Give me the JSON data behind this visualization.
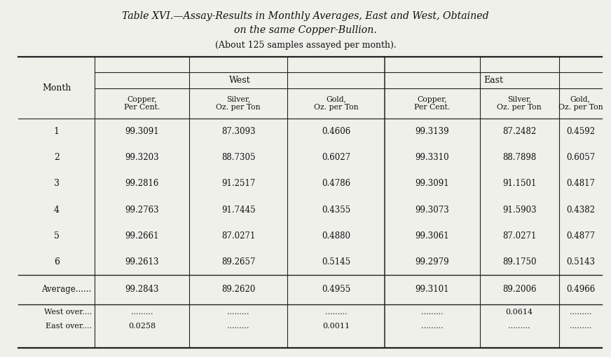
{
  "title_line1": "Table XVI.—Assay-Results in Monthly Averages, East and West, Obtained",
  "title_line2": "on the same Copper-Bullion.",
  "subtitle": "(About 125 samples assayed per month).",
  "col_group_west": "West",
  "col_group_east": "East",
  "col_headers_west": [
    "Copper,\nPer Cent.",
    "Silver,\nOz. per Ton",
    "Gold,\nOz. per Ton"
  ],
  "col_headers_east": [
    "Copper,\nPer Cent.",
    "Silver,\nOz. per Ton",
    "Gold,\nOz. per Ton"
  ],
  "row_header": "Month",
  "months": [
    "1",
    "2",
    "3",
    "4",
    "5",
    "6"
  ],
  "west_data": [
    [
      "99.3091",
      "87.3093",
      "0.4606"
    ],
    [
      "99.3203",
      "88.7305",
      "0.6027"
    ],
    [
      "99.2816",
      "91.2517",
      "0.4786"
    ],
    [
      "99.2763",
      "91.7445",
      "0.4355"
    ],
    [
      "99.2661",
      "87.0271",
      "0.4880"
    ],
    [
      "99.2613",
      "89.2657",
      "0.5145"
    ]
  ],
  "east_data": [
    [
      "99.3139",
      "87.2482",
      "0.4592"
    ],
    [
      "99.3310",
      "88.7898",
      "0.6057"
    ],
    [
      "99.3091",
      "91.1501",
      "0.4817"
    ],
    [
      "99.3073",
      "91.5903",
      "0.4382"
    ],
    [
      "99.3061",
      "87.0271",
      "0.4877"
    ],
    [
      "99.2979",
      "89.1750",
      "0.5143"
    ]
  ],
  "avg_west": [
    "99.2843",
    "89.2620",
    "0.4955"
  ],
  "avg_east": [
    "99.3101",
    "89.2006",
    "0.4966"
  ],
  "avg_label": "Average......",
  "west_over_label": "West over....",
  "east_over_label": "East over....",
  "west_over_vals": [
    ".........",
    ".........",
    ".........",
    ".........",
    "0.0614",
    "........."
  ],
  "east_over_vals": [
    "0.0258",
    ".........",
    "0.0011",
    ".........",
    ".........",
    "........."
  ],
  "bg_color": "#f0f0eb",
  "text_color": "#111111",
  "line_color": "#333333"
}
